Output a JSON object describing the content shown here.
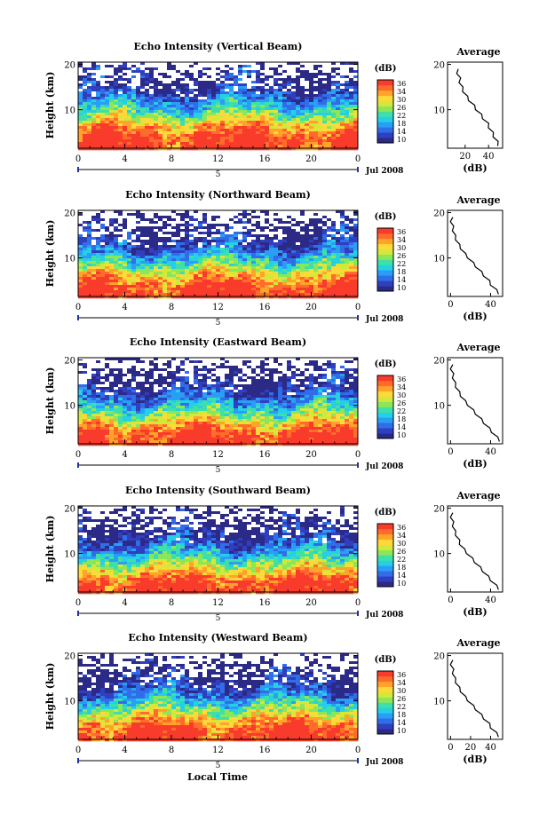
{
  "colors": {
    "scale": [
      "#2c2a87",
      "#2f3fbf",
      "#2f6ee8",
      "#2a9ef5",
      "#25cfe6",
      "#3fe0a8",
      "#8be65a",
      "#d4e83a",
      "#ffd83a",
      "#ffa32a",
      "#ff6b2a",
      "#f93b2c"
    ],
    "axis": "#000000",
    "date_marker": "#2233aa"
  },
  "shared": {
    "colorbar_unit": "(dB)",
    "colorbar_ticks": [
      "36",
      "34",
      "30",
      "26",
      "22",
      "18",
      "14",
      "10"
    ],
    "height_label": "Height (km)",
    "height_ticks": [
      "20",
      "10"
    ],
    "time_ticks": [
      "0",
      "4",
      "8",
      "12",
      "16",
      "20",
      "0"
    ],
    "date_day": "5",
    "date_label": "Jul 2008",
    "avg_title": "Average",
    "avg_unit": "(dB)",
    "x_title": "Local Time"
  },
  "chart_data": [
    {
      "type": "heatmap",
      "title": "Echo Intensity (Vertical Beam)",
      "xlabel": "",
      "ylabel": "Height (km)",
      "xlim": [
        0,
        24
      ],
      "ylim": [
        1.5,
        20.5
      ],
      "colorbar_range": [
        10,
        38
      ],
      "intensity_profile": [
        {
          "height": 2,
          "db": 38
        },
        {
          "height": 4,
          "db": 37
        },
        {
          "height": 6,
          "db": 33
        },
        {
          "height": 8,
          "db": 27
        },
        {
          "height": 10,
          "db": 22
        },
        {
          "height": 12,
          "db": 17
        },
        {
          "height": 14,
          "db": 13
        },
        {
          "height": 16,
          "db": 11
        },
        {
          "height": 18,
          "db": 10
        },
        {
          "height": 20,
          "db": 9
        }
      ]
    },
    {
      "type": "line",
      "title": "Average",
      "xlabel": "(dB)",
      "ylabel": "",
      "x_ticks": [
        "20",
        "40"
      ],
      "xlim": [
        5,
        52
      ],
      "ylim": [
        1.5,
        20.5
      ],
      "x": [
        49,
        47,
        45,
        43,
        41,
        39,
        36,
        33,
        30,
        27,
        24,
        21,
        19,
        17,
        16,
        15,
        14,
        13
      ],
      "y": [
        2,
        3,
        4,
        5,
        6,
        7,
        8,
        9,
        10,
        11,
        12,
        13,
        14,
        15,
        16,
        17,
        18,
        19
      ]
    },
    {
      "type": "heatmap",
      "title": "Echo Intensity (Northward Beam)",
      "xlabel": "",
      "ylabel": "Height (km)",
      "xlim": [
        0,
        24
      ],
      "ylim": [
        1.5,
        20.5
      ],
      "colorbar_range": [
        10,
        38
      ],
      "intensity_profile": [
        {
          "height": 2,
          "db": 38
        },
        {
          "height": 4,
          "db": 36
        },
        {
          "height": 6,
          "db": 31
        },
        {
          "height": 8,
          "db": 25
        },
        {
          "height": 10,
          "db": 20
        },
        {
          "height": 12,
          "db": 15
        },
        {
          "height": 14,
          "db": 12
        },
        {
          "height": 16,
          "db": 10
        },
        {
          "height": 18,
          "db": 9
        },
        {
          "height": 20,
          "db": 8
        }
      ]
    },
    {
      "type": "line",
      "title": "Average",
      "xlabel": "(dB)",
      "ylabel": "",
      "x_ticks": [
        "0",
        "40"
      ],
      "xlim": [
        -3,
        52
      ],
      "ylim": [
        1.5,
        20.5
      ],
      "x": [
        49,
        45,
        41,
        38,
        34,
        30,
        26,
        22,
        18,
        14,
        11,
        8,
        6,
        4,
        3,
        2,
        1,
        1
      ],
      "y": [
        2,
        3,
        4,
        5,
        6,
        7,
        8,
        9,
        10,
        11,
        12,
        13,
        14,
        15,
        16,
        17,
        18,
        19
      ]
    },
    {
      "type": "heatmap",
      "title": "Echo Intensity (Eastward Beam)",
      "xlabel": "",
      "ylabel": "Height (km)",
      "xlim": [
        0,
        24
      ],
      "ylim": [
        1.5,
        20.5
      ],
      "colorbar_range": [
        10,
        38
      ],
      "intensity_profile": [
        {
          "height": 2,
          "db": 38
        },
        {
          "height": 4,
          "db": 36
        },
        {
          "height": 6,
          "db": 31
        },
        {
          "height": 8,
          "db": 25
        },
        {
          "height": 10,
          "db": 20
        },
        {
          "height": 12,
          "db": 15
        },
        {
          "height": 14,
          "db": 12
        },
        {
          "height": 16,
          "db": 10
        },
        {
          "height": 18,
          "db": 9
        },
        {
          "height": 20,
          "db": 8
        }
      ]
    },
    {
      "type": "line",
      "title": "Average",
      "xlabel": "(dB)",
      "ylabel": "",
      "x_ticks": [
        "0",
        "40"
      ],
      "xlim": [
        -3,
        52
      ],
      "ylim": [
        1.5,
        20.5
      ],
      "x": [
        50,
        46,
        42,
        38,
        34,
        30,
        26,
        22,
        18,
        14,
        11,
        8,
        6,
        4,
        3,
        2,
        1,
        1
      ],
      "y": [
        2,
        3,
        4,
        5,
        6,
        7,
        8,
        9,
        10,
        11,
        12,
        13,
        14,
        15,
        16,
        17,
        18,
        19
      ]
    },
    {
      "type": "heatmap",
      "title": "Echo Intensity (Southward Beam)",
      "xlabel": "",
      "ylabel": "Height (km)",
      "xlim": [
        0,
        24
      ],
      "ylim": [
        1.5,
        20.5
      ],
      "colorbar_range": [
        10,
        38
      ],
      "intensity_profile": [
        {
          "height": 2,
          "db": 38
        },
        {
          "height": 4,
          "db": 36
        },
        {
          "height": 6,
          "db": 31
        },
        {
          "height": 8,
          "db": 25
        },
        {
          "height": 10,
          "db": 20
        },
        {
          "height": 12,
          "db": 15
        },
        {
          "height": 14,
          "db": 12
        },
        {
          "height": 16,
          "db": 10
        },
        {
          "height": 18,
          "db": 9
        },
        {
          "height": 20,
          "db": 8
        }
      ]
    },
    {
      "type": "line",
      "title": "Average",
      "xlabel": "(dB)",
      "ylabel": "",
      "x_ticks": [
        "0",
        "40"
      ],
      "xlim": [
        -3,
        52
      ],
      "ylim": [
        1.5,
        20.5
      ],
      "x": [
        49,
        45,
        41,
        37,
        33,
        29,
        25,
        21,
        17,
        13,
        10,
        8,
        6,
        4,
        3,
        2,
        1,
        1
      ],
      "y": [
        2,
        3,
        4,
        5,
        6,
        7,
        8,
        9,
        10,
        11,
        12,
        13,
        14,
        15,
        16,
        17,
        18,
        19
      ]
    },
    {
      "type": "heatmap",
      "title": "Echo Intensity (Westward Beam)",
      "xlabel": "Local Time",
      "ylabel": "Height (km)",
      "xlim": [
        0,
        24
      ],
      "ylim": [
        1.5,
        20.5
      ],
      "colorbar_range": [
        10,
        38
      ],
      "intensity_profile": [
        {
          "height": 2,
          "db": 38
        },
        {
          "height": 4,
          "db": 36
        },
        {
          "height": 6,
          "db": 31
        },
        {
          "height": 8,
          "db": 25
        },
        {
          "height": 10,
          "db": 20
        },
        {
          "height": 12,
          "db": 15
        },
        {
          "height": 14,
          "db": 12
        },
        {
          "height": 16,
          "db": 10
        },
        {
          "height": 18,
          "db": 9
        },
        {
          "height": 20,
          "db": 8
        }
      ]
    },
    {
      "type": "line",
      "title": "Average",
      "xlabel": "(dB)",
      "ylabel": "",
      "x_ticks": [
        "0",
        "20",
        "40"
      ],
      "xlim": [
        -3,
        52
      ],
      "ylim": [
        1.5,
        20.5
      ],
      "x": [
        49,
        45,
        41,
        38,
        34,
        30,
        26,
        22,
        18,
        14,
        11,
        8,
        6,
        4,
        3,
        2,
        1,
        1
      ],
      "y": [
        2,
        3,
        4,
        5,
        6,
        7,
        8,
        9,
        10,
        11,
        12,
        13,
        14,
        15,
        16,
        17,
        18,
        19
      ]
    }
  ]
}
